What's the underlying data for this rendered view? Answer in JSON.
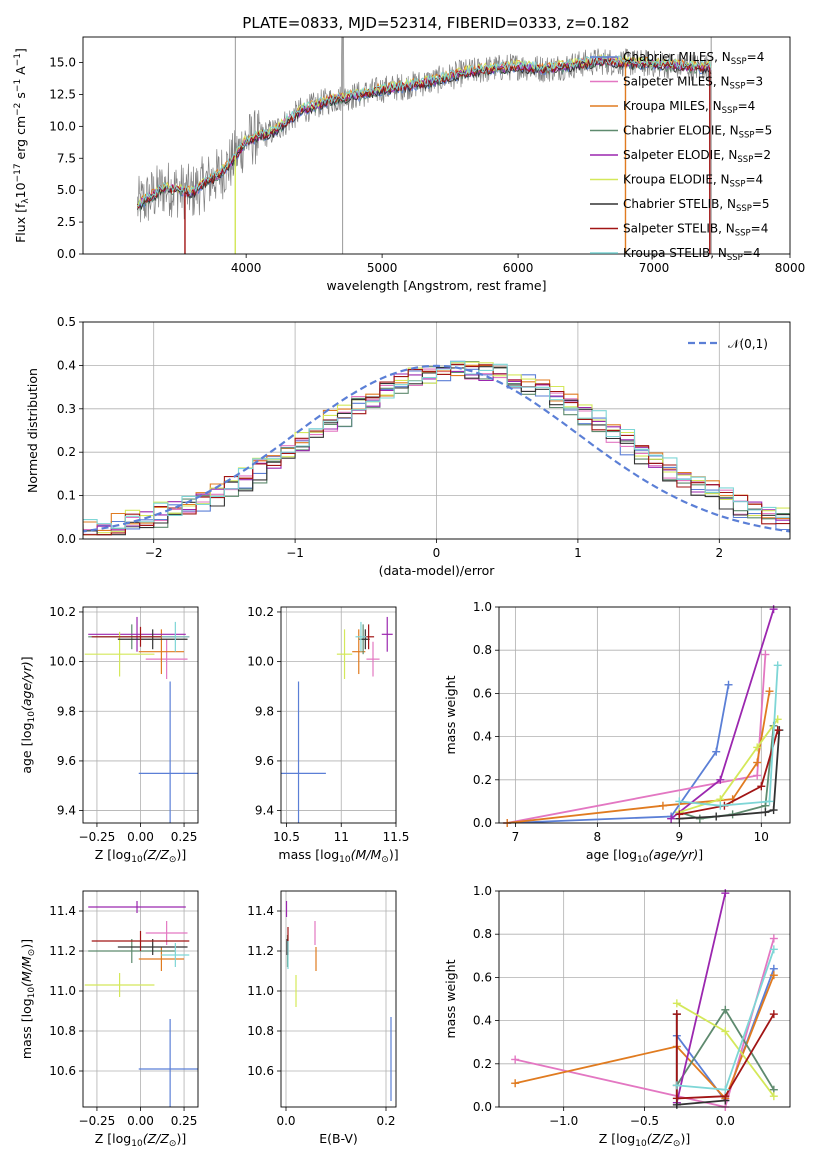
{
  "figure_title": "PLATE=0833, MJD=52314, FIBERID=0333, z=0.182",
  "colors": {
    "Chabrier MILES": "#5b7fd6",
    "Salpeter MILES": "#e377c2",
    "Kroupa MILES": "#e07b20",
    "Chabrier ELODIE": "#5e8a6e",
    "Salpeter ELODIE": "#9b27af",
    "Kroupa ELODIE": "#d4e85a",
    "Chabrier STELIB": "#333333",
    "Salpeter STELIB": "#a11515",
    "Kroupa STELIB": "#7ed6d6",
    "data": "#808080",
    "normal": "#5b7fd6"
  },
  "legend_spectrum": [
    "Chabrier MILES, N_SSP=4",
    "Salpeter MILES, N_SSP=3",
    "Kroupa MILES, N_SSP=4",
    "Chabrier ELODIE, N_SSP=5",
    "Salpeter ELODIE, N_SSP=2",
    "Kroupa ELODIE, N_SSP=4",
    "Chabrier STELIB, N_SSP=5",
    "Salpeter STELIB, N_SSP=4",
    "Kroupa STELIB, N_SSP=4"
  ],
  "chart_data": [
    {
      "id": "spectrum",
      "type": "line",
      "xlabel": "wavelength [Angstrom, rest frame]",
      "ylabel": "Flux [f_λ 10^-17 erg cm^-2 s^-1 A^-1]",
      "xlim": [
        2800,
        8000
      ],
      "ylim": [
        0,
        17
      ],
      "xticks": [
        4000,
        5000,
        6000,
        7000,
        8000
      ],
      "yticks": [
        0.0,
        2.5,
        5.0,
        7.5,
        10.0,
        12.5,
        15.0
      ],
      "grid": false,
      "legend_position": "top-right",
      "continuum": {
        "x": [
          3200,
          3400,
          3600,
          3700,
          3800,
          3900,
          4000,
          4200,
          4400,
          4600,
          4800,
          5000,
          5200,
          5400,
          5600,
          5800,
          6000,
          6200,
          6400,
          6600,
          6800,
          7000,
          7200,
          7400
        ],
        "y": [
          3.8,
          5.2,
          4.8,
          5.6,
          6.2,
          7.3,
          8.9,
          9.6,
          11.2,
          12.0,
          12.4,
          12.9,
          13.2,
          13.6,
          14.2,
          14.5,
          14.7,
          14.5,
          14.8,
          15.1,
          15.0,
          14.9,
          14.7,
          14.6
        ]
      },
      "model_dips": [
        {
          "x": 3550,
          "series": "Salpeter STELIB"
        },
        {
          "x": 3920,
          "series": "Kroupa ELODIE"
        },
        {
          "x": 6790,
          "series": "Kroupa MILES"
        },
        {
          "x": 7410,
          "series": "Salpeter STELIB"
        }
      ],
      "data_spikes": [
        3920,
        4710,
        7420
      ]
    },
    {
      "id": "residuals",
      "type": "histogram",
      "xlabel": "(data-model)/error",
      "ylabel": "Normed distribution",
      "xlim": [
        -2.5,
        2.5
      ],
      "ylim": [
        0,
        0.5
      ],
      "xticks": [
        -2,
        -1,
        0,
        1,
        2
      ],
      "yticks": [
        0.0,
        0.1,
        0.2,
        0.3,
        0.4,
        0.5
      ],
      "grid": true,
      "bin_width": 0.1,
      "legend": [
        "𝒩(0,1)"
      ],
      "legend_position": "top-right",
      "normal": {
        "mean": 0,
        "sigma": 1
      }
    },
    {
      "id": "age_vs_Z",
      "type": "errorbar",
      "xlabel": "Z [log10(Z/Z_sun)]",
      "ylabel": "age [log10(age/yr)]",
      "xlim": [
        -0.33,
        0.33
      ],
      "ylim": [
        9.35,
        10.22
      ],
      "xticks": [
        -0.25,
        0.0,
        0.25
      ],
      "xticklabels": [
        "−0.25",
        "0.00",
        "0.25"
      ],
      "yticks": [
        9.4,
        9.6,
        9.8,
        10.0,
        10.2
      ],
      "grid": true,
      "points": [
        {
          "series": "Chabrier MILES",
          "x": 0.17,
          "xerr": 0.18,
          "y": 9.55,
          "yerr": 0.37
        },
        {
          "series": "Salpeter MILES",
          "x": 0.15,
          "xerr": 0.12,
          "y": 10.01,
          "yerr": 0.08
        },
        {
          "series": "Kroupa MILES",
          "x": 0.12,
          "xerr": 0.13,
          "y": 10.04,
          "yerr": 0.09
        },
        {
          "series": "Chabrier ELODIE",
          "x": -0.05,
          "xerr": 0.25,
          "y": 10.1,
          "yerr": 0.05
        },
        {
          "series": "Salpeter ELODIE",
          "x": -0.02,
          "xerr": 0.28,
          "y": 10.11,
          "yerr": 0.07
        },
        {
          "series": "Kroupa ELODIE",
          "x": -0.12,
          "xerr": 0.2,
          "y": 10.03,
          "yerr": 0.09
        },
        {
          "series": "Chabrier STELIB",
          "x": 0.07,
          "xerr": 0.2,
          "y": 10.09,
          "yerr": 0.04
        },
        {
          "series": "Salpeter STELIB",
          "x": 0.0,
          "xerr": 0.28,
          "y": 10.1,
          "yerr": 0.04
        },
        {
          "series": "Kroupa STELIB",
          "x": 0.2,
          "xerr": 0.08,
          "y": 10.1,
          "yerr": 0.06
        }
      ]
    },
    {
      "id": "age_vs_mass",
      "type": "errorbar",
      "xlabel": "mass [log10(M/M_sun)]",
      "ylabel": "",
      "xlim": [
        10.45,
        11.5
      ],
      "ylim": [
        9.35,
        10.22
      ],
      "xticks": [
        10.5,
        11.0,
        11.5
      ],
      "yticks": [
        9.4,
        9.6,
        9.8,
        10.0,
        10.2
      ],
      "grid": true,
      "points": [
        {
          "series": "Chabrier MILES",
          "x": 10.61,
          "xerr": 0.25,
          "y": 9.55,
          "yerr": 0.37
        },
        {
          "series": "Salpeter MILES",
          "x": 11.29,
          "xerr": 0.06,
          "y": 10.01,
          "yerr": 0.07
        },
        {
          "series": "Kroupa MILES",
          "x": 11.16,
          "xerr": 0.06,
          "y": 10.04,
          "yerr": 0.09
        },
        {
          "series": "Chabrier ELODIE",
          "x": 11.2,
          "xerr": 0.04,
          "y": 10.09,
          "yerr": 0.06
        },
        {
          "series": "Salpeter ELODIE",
          "x": 11.42,
          "xerr": 0.05,
          "y": 10.11,
          "yerr": 0.07
        },
        {
          "series": "Kroupa ELODIE",
          "x": 11.03,
          "xerr": 0.07,
          "y": 10.03,
          "yerr": 0.1
        },
        {
          "series": "Chabrier STELIB",
          "x": 11.22,
          "xerr": 0.04,
          "y": 10.09,
          "yerr": 0.04
        },
        {
          "series": "Salpeter STELIB",
          "x": 11.25,
          "xerr": 0.05,
          "y": 10.1,
          "yerr": 0.05
        },
        {
          "series": "Kroupa STELIB",
          "x": 11.18,
          "xerr": 0.05,
          "y": 10.1,
          "yerr": 0.06
        }
      ]
    },
    {
      "id": "weight_vs_age",
      "type": "line",
      "xlabel": "age [log10(age/yr)]",
      "ylabel": "mass weight",
      "xlim": [
        6.8,
        10.35
      ],
      "ylim": [
        0,
        1.0
      ],
      "xticks": [
        7,
        8,
        9,
        10
      ],
      "yticks": [
        0.0,
        0.2,
        0.4,
        0.6,
        0.8,
        1.0
      ],
      "grid": true,
      "series": [
        {
          "name": "Chabrier MILES",
          "x": [
            6.9,
            8.9,
            9.45,
            9.6
          ],
          "y": [
            0.0,
            0.03,
            0.33,
            0.64
          ]
        },
        {
          "name": "Salpeter MILES",
          "x": [
            6.9,
            9.95,
            10.05
          ],
          "y": [
            0.0,
            0.22,
            0.78
          ]
        },
        {
          "name": "Kroupa MILES",
          "x": [
            6.9,
            8.8,
            9.65,
            9.95,
            10.1
          ],
          "y": [
            0.0,
            0.08,
            0.11,
            0.28,
            0.61
          ]
        },
        {
          "name": "Chabrier ELODIE",
          "x": [
            9.0,
            9.25,
            9.65,
            10.05,
            10.15
          ],
          "y": [
            0.05,
            0.02,
            0.04,
            0.08,
            0.45
          ]
        },
        {
          "name": "Salpeter ELODIE",
          "x": [
            8.9,
            9.5,
            10.15
          ],
          "y": [
            0.02,
            0.2,
            0.99
          ]
        },
        {
          "name": "Kroupa ELODIE",
          "x": [
            9.0,
            9.5,
            9.95,
            10.2
          ],
          "y": [
            0.05,
            0.11,
            0.35,
            0.48
          ]
        },
        {
          "name": "Chabrier STELIB",
          "x": [
            9.0,
            9.45,
            10.05,
            10.15,
            10.22
          ],
          "y": [
            0.02,
            0.03,
            0.05,
            0.06,
            0.43
          ]
        },
        {
          "name": "Salpeter STELIB",
          "x": [
            9.0,
            9.55,
            10.0,
            10.2
          ],
          "y": [
            0.04,
            0.08,
            0.17,
            0.43
          ]
        },
        {
          "name": "Kroupa STELIB",
          "x": [
            9.0,
            9.5,
            10.1,
            10.2
          ],
          "y": [
            0.1,
            0.08,
            0.1,
            0.73
          ]
        }
      ]
    },
    {
      "id": "mass_vs_Z",
      "type": "errorbar",
      "xlabel": "Z [log10(Z/Z_sun)]",
      "ylabel": "mass [log10(M/M_sun)]",
      "xlim": [
        -0.33,
        0.33
      ],
      "ylim": [
        10.42,
        11.5
      ],
      "xticks": [
        -0.25,
        0.0,
        0.25
      ],
      "xticklabels": [
        "−0.25",
        "0.00",
        "0.25"
      ],
      "yticks": [
        10.6,
        10.8,
        11.0,
        11.2,
        11.4
      ],
      "grid": true,
      "points": [
        {
          "series": "Chabrier MILES",
          "x": 0.17,
          "xerr": 0.18,
          "y": 10.61,
          "yerr": 0.25
        },
        {
          "series": "Salpeter MILES",
          "x": 0.15,
          "xerr": 0.12,
          "y": 11.29,
          "yerr": 0.06
        },
        {
          "series": "Kroupa MILES",
          "x": 0.12,
          "xerr": 0.13,
          "y": 11.16,
          "yerr": 0.06
        },
        {
          "series": "Chabrier ELODIE",
          "x": -0.05,
          "xerr": 0.25,
          "y": 11.2,
          "yerr": 0.06
        },
        {
          "series": "Salpeter ELODIE",
          "x": -0.02,
          "xerr": 0.28,
          "y": 11.42,
          "yerr": 0.03
        },
        {
          "series": "Kroupa ELODIE",
          "x": -0.12,
          "xerr": 0.2,
          "y": 11.03,
          "yerr": 0.06
        },
        {
          "series": "Chabrier STELIB",
          "x": 0.07,
          "xerr": 0.2,
          "y": 11.22,
          "yerr": 0.04
        },
        {
          "series": "Salpeter STELIB",
          "x": 0.0,
          "xerr": 0.28,
          "y": 11.25,
          "yerr": 0.05
        },
        {
          "series": "Kroupa STELIB",
          "x": 0.2,
          "xerr": 0.08,
          "y": 11.18,
          "yerr": 0.06
        }
      ]
    },
    {
      "id": "mass_vs_EBV",
      "type": "errorbar",
      "xlabel": "E(B-V)",
      "ylabel": "",
      "xlim": [
        -0.01,
        0.22
      ],
      "ylim": [
        10.42,
        11.5
      ],
      "xticks": [
        0.0,
        0.2
      ],
      "xticklabels": [
        "0.0",
        "0.2"
      ],
      "yticks": [
        10.6,
        10.8,
        11.0,
        11.2,
        11.4
      ],
      "grid": true,
      "points": [
        {
          "series": "Chabrier MILES",
          "x": 0.21,
          "xerr": 0,
          "y": 10.66,
          "yerr": 0.21
        },
        {
          "series": "Salpeter MILES",
          "x": 0.058,
          "xerr": 0,
          "y": 11.29,
          "yerr": 0.06
        },
        {
          "series": "Kroupa MILES",
          "x": 0.06,
          "xerr": 0,
          "y": 11.16,
          "yerr": 0.06
        },
        {
          "series": "Chabrier ELODIE",
          "x": 0.003,
          "xerr": 0,
          "y": 11.2,
          "yerr": 0.08
        },
        {
          "series": "Salpeter ELODIE",
          "x": 0.001,
          "xerr": 0,
          "y": 11.41,
          "yerr": 0.04
        },
        {
          "series": "Kroupa ELODIE",
          "x": 0.02,
          "xerr": 0,
          "y": 11.0,
          "yerr": 0.08
        },
        {
          "series": "Chabrier STELIB",
          "x": 0.002,
          "xerr": 0,
          "y": 11.22,
          "yerr": 0.04
        },
        {
          "series": "Salpeter STELIB",
          "x": 0.004,
          "xerr": 0,
          "y": 11.25,
          "yerr": 0.07
        },
        {
          "series": "Kroupa STELIB",
          "x": 0.004,
          "xerr": 0,
          "y": 11.18,
          "yerr": 0.07
        }
      ]
    },
    {
      "id": "weight_vs_Z",
      "type": "line",
      "xlabel": "Z [log10(Z/Z_sun)]",
      "ylabel": "mass weight",
      "xlim": [
        -1.4,
        0.4
      ],
      "ylim": [
        0,
        1.0
      ],
      "xticks": [
        -1.0,
        -0.5,
        0.0
      ],
      "xticklabels": [
        "−1.0",
        "−0.5",
        "0.0"
      ],
      "yticks": [
        0.0,
        0.2,
        0.4,
        0.6,
        0.8,
        1.0
      ],
      "grid": true,
      "series": [
        {
          "name": "Chabrier MILES",
          "x": [
            -0.3,
            0.0,
            0.3
          ],
          "y": [
            0.33,
            0.03,
            0.64
          ]
        },
        {
          "name": "Salpeter MILES",
          "x": [
            -1.3,
            0.0,
            0.3
          ],
          "y": [
            0.22,
            0.0,
            0.78
          ]
        },
        {
          "name": "Kroupa MILES",
          "x": [
            -1.3,
            -0.3,
            0.0,
            0.3
          ],
          "y": [
            0.11,
            0.28,
            0.04,
            0.61
          ]
        },
        {
          "name": "Chabrier ELODIE",
          "x": [
            -0.3,
            0.0,
            0.3
          ],
          "y": [
            0.1,
            0.45,
            0.08
          ]
        },
        {
          "name": "Salpeter ELODIE",
          "x": [
            -0.3,
            0.0
          ],
          "y": [
            0.02,
            0.99
          ]
        },
        {
          "name": "Kroupa ELODIE",
          "x": [
            -0.3,
            0.0,
            0.3
          ],
          "y": [
            0.48,
            0.35,
            0.05
          ]
        },
        {
          "name": "Chabrier STELIB",
          "x": [
            -0.3,
            -0.3,
            0.0
          ],
          "y": [
            0.43,
            0.01,
            0.03
          ]
        },
        {
          "name": "Salpeter STELIB",
          "x": [
            -0.3,
            -0.3,
            0.0,
            0.3
          ],
          "y": [
            0.43,
            0.04,
            0.05,
            0.43
          ]
        },
        {
          "name": "Kroupa STELIB",
          "x": [
            -0.3,
            0.0,
            0.3
          ],
          "y": [
            0.1,
            0.08,
            0.73
          ]
        }
      ]
    }
  ]
}
